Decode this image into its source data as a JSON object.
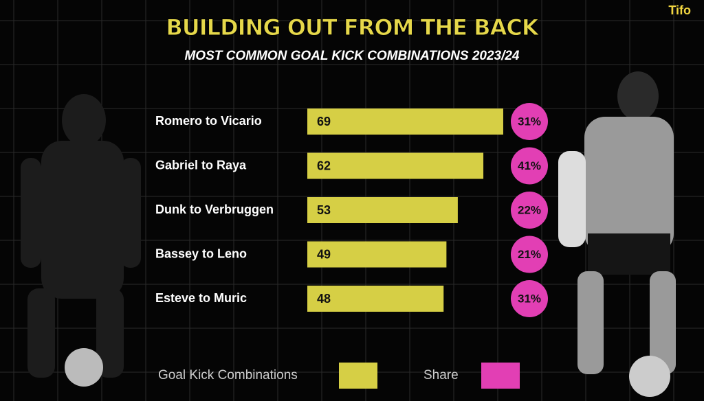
{
  "brand": "Tifo",
  "chart_data": {
    "type": "bar",
    "orientation": "horizontal",
    "title": "BUILDING OUT FROM THE BACK",
    "subtitle": "MOST COMMON GOAL KICK COMBINATIONS 2023/24",
    "categories": [
      "Romero to Vicario",
      "Gabriel to Raya",
      "Dunk to Verbruggen",
      "Bassey to Leno",
      "Esteve to Muric"
    ],
    "series": [
      {
        "name": "Goal Kick Combinations",
        "color": "#d6cf45",
        "values": [
          69,
          62,
          53,
          49,
          48
        ]
      },
      {
        "name": "Share",
        "color": "#e23fb4",
        "values": [
          31,
          41,
          22,
          21,
          31
        ],
        "value_labels": [
          "31%",
          "41%",
          "22%",
          "21%",
          "31%"
        ]
      }
    ]
  }
}
